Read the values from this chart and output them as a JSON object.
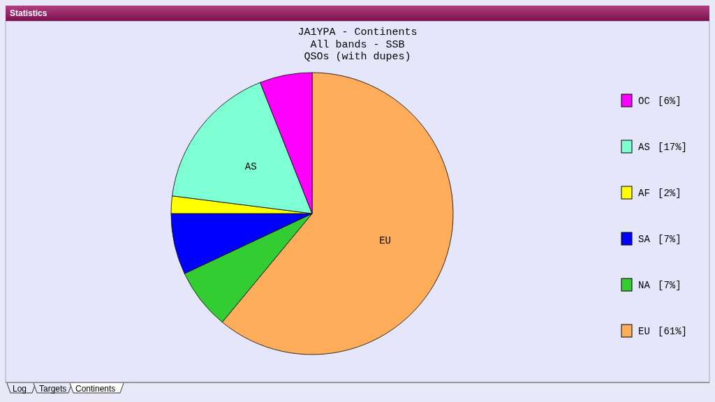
{
  "chart_data": {
    "type": "pie",
    "title": "JA1YPA - Continents",
    "subtitle": "All bands - SSB\nQSOs (with dupes)",
    "categories": [
      "EU",
      "NA",
      "SA",
      "AF",
      "AS",
      "OC"
    ],
    "values": [
      61,
      7,
      7,
      2,
      17,
      6
    ],
    "colors": [
      "#ffad5b",
      "#33cc33",
      "#0000ff",
      "#ffff00",
      "#7fffd4",
      "#ff00ff"
    ],
    "value_labels": [
      "[61%]",
      "[7%]",
      "[7%]",
      "[2%]",
      "[17%]",
      "[6%]"
    ],
    "legend": "right",
    "annotations": [
      "Statistics",
      "Log",
      "Targets",
      "Continents"
    ]
  }
}
